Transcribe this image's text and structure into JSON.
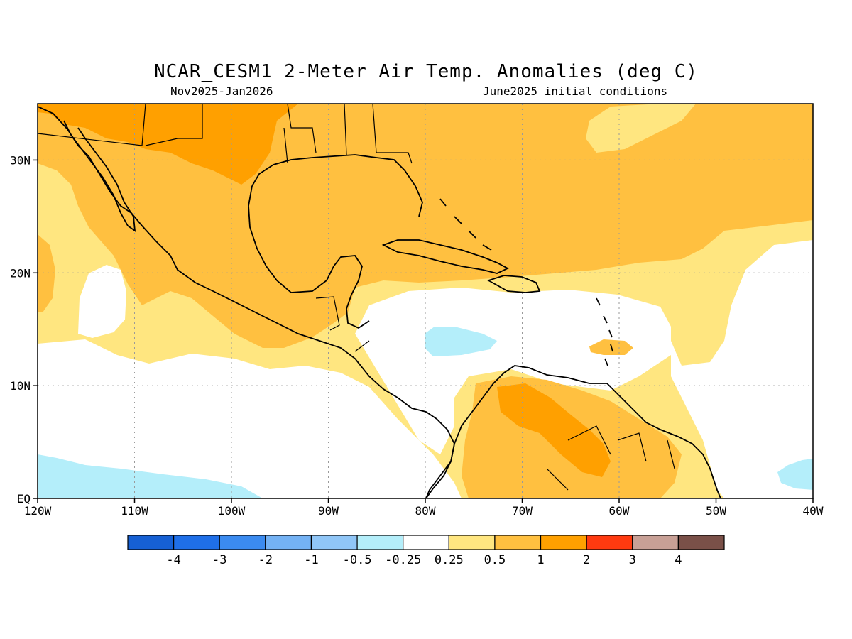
{
  "title": "NCAR_CESM1 2-Meter Air Temp. Anomalies (deg C)",
  "subtitle_left": "Nov2025-Jan2026",
  "subtitle_right": "June2025 initial conditions",
  "map": {
    "lon_range": [
      -120,
      -40
    ],
    "lat_range": [
      0,
      35
    ],
    "lon_ticks": [
      {
        "value": -120,
        "label": "120W"
      },
      {
        "value": -110,
        "label": "110W"
      },
      {
        "value": -100,
        "label": "100W"
      },
      {
        "value": -90,
        "label": "90W"
      },
      {
        "value": -80,
        "label": "80W"
      },
      {
        "value": -70,
        "label": "70W"
      },
      {
        "value": -60,
        "label": "60W"
      },
      {
        "value": -50,
        "label": "50W"
      },
      {
        "value": -40,
        "label": "40W"
      }
    ],
    "lat_ticks": [
      {
        "value": 0,
        "label": "EQ"
      },
      {
        "value": 10,
        "label": "10N"
      },
      {
        "value": 20,
        "label": "20N"
      },
      {
        "value": 30,
        "label": "30N"
      }
    ],
    "grid": true
  },
  "colorbar": {
    "colors": [
      "#1660d4",
      "#1f6fe8",
      "#3b8bf0",
      "#74b2f4",
      "#90c6f7",
      "#b4eefa",
      "#ffffff",
      "#ffe680",
      "#ffc040",
      "#ffa000",
      "#ff3a10",
      "#c8a096",
      "#7a5048"
    ],
    "labels": [
      "-4",
      "-3",
      "-2",
      "-1",
      "-0.5",
      "-0.25",
      "0.25",
      "0.5",
      "1",
      "2",
      "3",
      "4"
    ]
  },
  "fill_colors": {
    "c025": "#ffe680",
    "c05": "#ffc040",
    "c1": "#ffa000",
    "neg": "#b4eefa"
  }
}
